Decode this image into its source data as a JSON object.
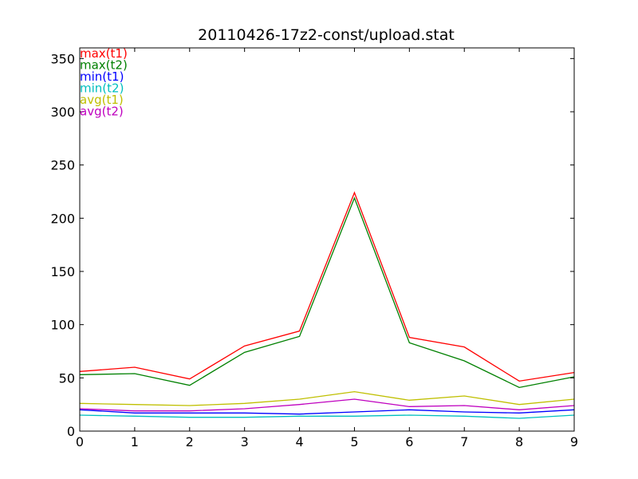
{
  "chart_data": {
    "type": "line",
    "title": "20110426-17z2-const/upload.stat",
    "xlabel": "",
    "ylabel": "",
    "x": [
      0,
      1,
      2,
      3,
      4,
      5,
      6,
      7,
      8,
      9
    ],
    "xlim": [
      0,
      9
    ],
    "ylim": [
      0,
      360
    ],
    "xticks": [
      "0",
      "1",
      "2",
      "3",
      "4",
      "5",
      "6",
      "7",
      "8",
      "9"
    ],
    "yticks": [
      "0",
      "50",
      "100",
      "150",
      "200",
      "250",
      "300",
      "350"
    ],
    "ytick_values": [
      0,
      50,
      100,
      150,
      200,
      250,
      300,
      350
    ],
    "grid": false,
    "legend_position": "upper-left",
    "series": [
      {
        "name": "max(t1)",
        "color": "#ff0000",
        "values": [
          56,
          60,
          49,
          80,
          94,
          224,
          88,
          79,
          47,
          55
        ]
      },
      {
        "name": "max(t2)",
        "color": "#008000",
        "values": [
          53,
          54,
          43,
          74,
          89,
          219,
          83,
          66,
          41,
          51
        ]
      },
      {
        "name": "min(t1)",
        "color": "#0000ff",
        "values": [
          20,
          17,
          17,
          17,
          16,
          18,
          20,
          18,
          17,
          20
        ]
      },
      {
        "name": "min(t2)",
        "color": "#00bfbf",
        "values": [
          15,
          14,
          13,
          13,
          14,
          14,
          15,
          14,
          12,
          15
        ]
      },
      {
        "name": "avg(t1)",
        "color": "#bfbf00",
        "values": [
          26,
          25,
          24,
          26,
          30,
          37,
          29,
          33,
          25,
          30
        ]
      },
      {
        "name": "avg(t2)",
        "color": "#bf00bf",
        "values": [
          21,
          19,
          19,
          21,
          25,
          30,
          23,
          24,
          20,
          24
        ]
      }
    ]
  }
}
